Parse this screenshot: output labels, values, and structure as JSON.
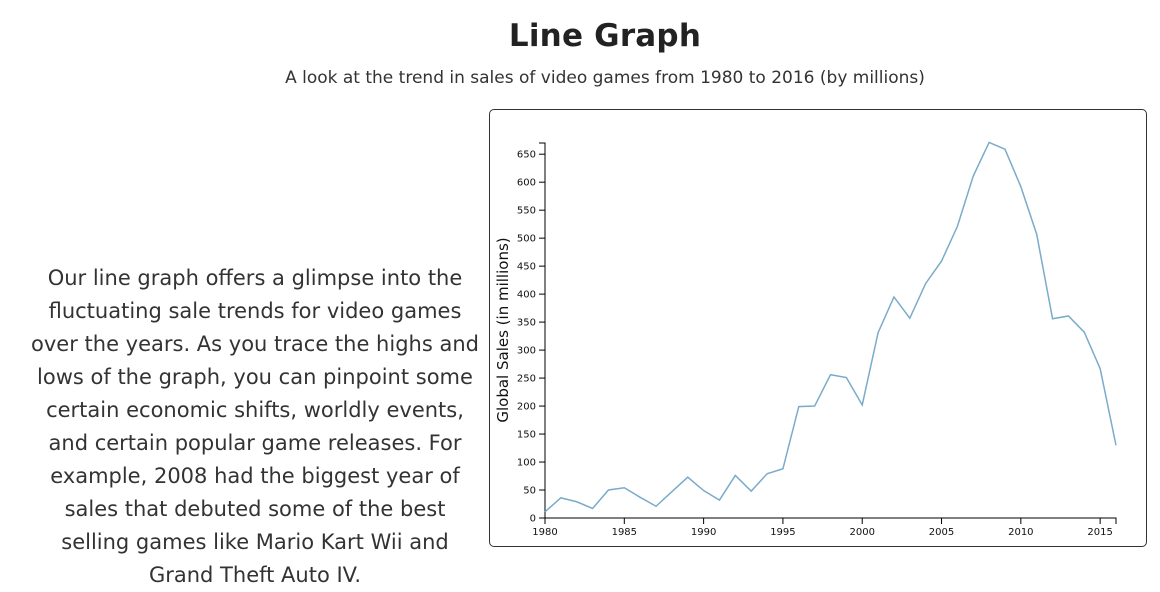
{
  "header": {
    "title": "Line Graph",
    "subtitle": "A look at the trend in sales of video games from 1980 to 2016 (by millions)"
  },
  "description": "Our line graph offers a glimpse into the fluctuating sale trends for video games over the years. As you trace the highs and lows of the graph, you can pinpoint some certain economic shifts, worldly events, and certain popular game releases. For example, 2008 had the biggest year of sales that debuted some of the best selling games like Mario Kart Wii and Grand Theft Auto IV.",
  "colors": {
    "line": "#7aabca",
    "axis": "#000000"
  },
  "chart_data": {
    "type": "line",
    "title": "",
    "xlabel": "",
    "ylabel": "Global Sales (in millions)",
    "xlim": [
      1980,
      2016
    ],
    "ylim": [
      0,
      670
    ],
    "x_ticks": [
      1980,
      1985,
      1990,
      1995,
      2000,
      2005,
      2010,
      2015
    ],
    "y_ticks": [
      0,
      50,
      100,
      150,
      200,
      250,
      300,
      350,
      400,
      450,
      500,
      550,
      600,
      650
    ],
    "grid": false,
    "series": [
      {
        "x": [
          1980,
          1981,
          1982,
          1983,
          1984,
          1985,
          1986,
          1987,
          1988,
          1989,
          1990,
          1991,
          1992,
          1993,
          1994,
          1995,
          1996,
          1997,
          1998,
          1999,
          2000,
          2001,
          2002,
          2003,
          2004,
          2005,
          2006,
          2007,
          2008,
          2009,
          2010,
          2011,
          2012,
          2013,
          2014,
          2015,
          2016
        ],
        "values": [
          11,
          36,
          29,
          17,
          50,
          54,
          37,
          21,
          47,
          73,
          49,
          32,
          76,
          48,
          79,
          88,
          199,
          200,
          256,
          251,
          202,
          331,
          395,
          357,
          419,
          459,
          521,
          611,
          671,
          659,
          592,
          507,
          356,
          361,
          332,
          267,
          130
        ]
      }
    ]
  }
}
